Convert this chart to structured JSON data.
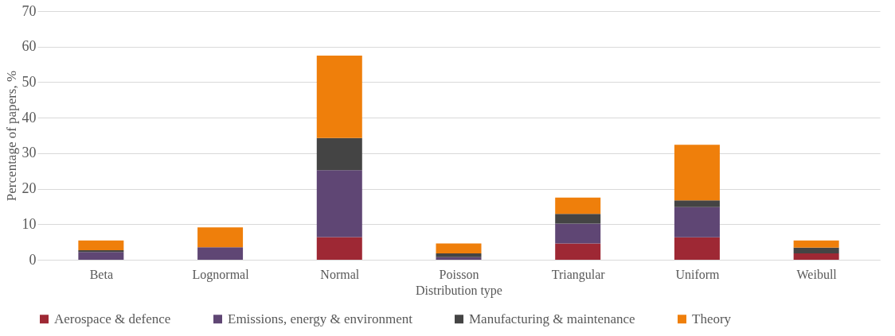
{
  "chart_data": {
    "type": "bar",
    "stacked": true,
    "xlabel": "Distribution type",
    "ylabel": "Percentage of papers, %",
    "categories": [
      "Beta",
      "Lognormal",
      "Normal",
      "Poisson",
      "Triangular",
      "Uniform",
      "Weibull"
    ],
    "series": [
      {
        "name": "Aerospace & defence",
        "color": "#9e2834",
        "values": [
          0,
          0,
          6.4,
          0,
          4.6,
          6.3,
          1.8
        ]
      },
      {
        "name": "Emissions, energy & environment",
        "color": "#5f4674",
        "values": [
          2.2,
          3.5,
          18.8,
          0.7,
          5.6,
          8.5,
          0
        ]
      },
      {
        "name": "Manufacturing & maintenance",
        "color": "#444444",
        "values": [
          0.5,
          0,
          9.1,
          1.1,
          2.7,
          1.9,
          1.6
        ]
      },
      {
        "name": "Theory",
        "color": "#ef7f0b",
        "values": [
          2.7,
          5.6,
          23.2,
          2.8,
          4.6,
          15.7,
          2.0
        ]
      }
    ],
    "ylim": [
      0,
      70
    ],
    "yticks": [
      0,
      10,
      20,
      30,
      40,
      50,
      60,
      70
    ],
    "grid": "y",
    "legend": "bottom"
  }
}
